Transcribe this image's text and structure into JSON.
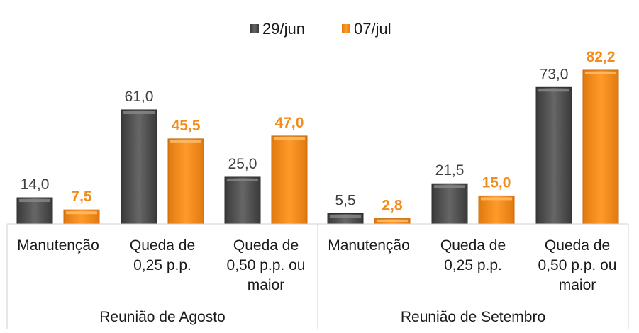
{
  "chart_data": {
    "type": "bar",
    "groups": [
      {
        "name": "Reunião de Agosto",
        "categories": [
          [
            "Manutenção"
          ],
          [
            "Queda de",
            "0,25 p.p."
          ],
          [
            "Queda de",
            "0,50 p.p. ou",
            "maior"
          ]
        ]
      },
      {
        "name": "Reunião de Setembro",
        "categories": [
          [
            "Manutenção"
          ],
          [
            "Queda de",
            "0,25 p.p."
          ],
          [
            "Queda de",
            "0,50 p.p. ou",
            "maior"
          ]
        ]
      }
    ],
    "series": [
      {
        "name": "29/jun",
        "color": "#505050",
        "values": [
          14.0,
          61.0,
          25.0,
          5.5,
          21.5,
          73.0
        ],
        "labels": [
          "14,0",
          "61,0",
          "25,0",
          "5,5",
          "21,5",
          "73,0"
        ],
        "label_color": "#404040"
      },
      {
        "name": "07/jul",
        "color": "#f28c1c",
        "values": [
          7.5,
          45.5,
          47.0,
          2.8,
          15.0,
          82.2
        ],
        "labels": [
          "7,5",
          "45,5",
          "47,0",
          "2,8",
          "15,0",
          "82,2"
        ],
        "label_color": "#f28c1c"
      }
    ],
    "ylim": [
      0,
      84
    ],
    "grid": false,
    "legend_position": "top-center"
  }
}
